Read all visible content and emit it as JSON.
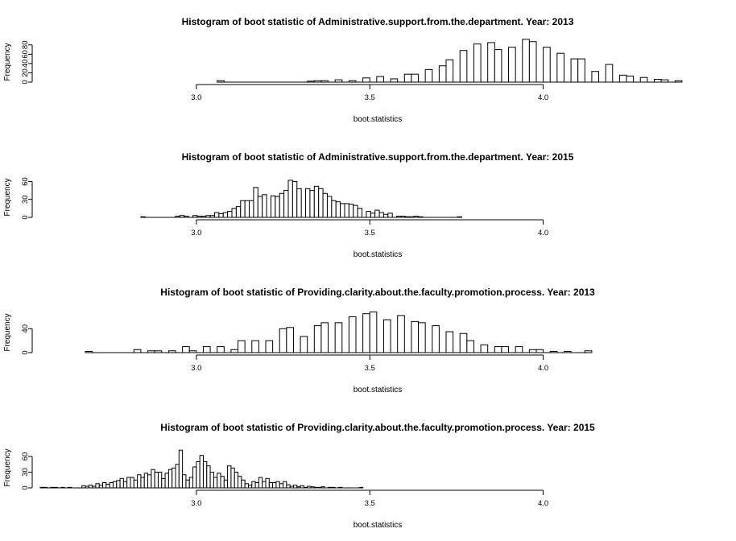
{
  "chart_data": [
    {
      "type": "bar",
      "title": "Histogram of boot statistic of  Administrative.support.from.the.department. Year: 2013",
      "xlabel": "boot.statistics",
      "ylabel": "Frequency",
      "xticks": [
        "3.0",
        "3.5",
        "4.0"
      ],
      "yticks": [
        "0",
        "20",
        "40",
        "60",
        "80"
      ],
      "xlim": [
        2.55,
        4.5
      ],
      "ylim": [
        0,
        90
      ],
      "bin_width": 0.02,
      "x_start": 3.06,
      "values": [
        3,
        0,
        0,
        0,
        0,
        0,
        0,
        0,
        0,
        0,
        0,
        0,
        0,
        2,
        3,
        3,
        0,
        5,
        0,
        3,
        0,
        9,
        0,
        12,
        0,
        7,
        0,
        17,
        17,
        0,
        27,
        0,
        35,
        48,
        0,
        68,
        0,
        82,
        0,
        85,
        70,
        0,
        75,
        0,
        92,
        87,
        0,
        75,
        0,
        62,
        0,
        50,
        50,
        0,
        23,
        0,
        38,
        0,
        15,
        13,
        0,
        10,
        0,
        6,
        5,
        0,
        3,
        0,
        0,
        0,
        0,
        0,
        0
      ],
      "grid": false,
      "legend": "none"
    },
    {
      "type": "bar",
      "title": "Histogram of boot statistic of  Administrative.support.from.the.department. Year: 2015",
      "xlabel": "boot.statistics",
      "ylabel": "Frequency",
      "xticks": [
        "3.0",
        "3.5",
        "4.0"
      ],
      "yticks": [
        "0",
        "30",
        "60"
      ],
      "xlim": [
        2.55,
        4.5
      ],
      "ylim": [
        0,
        70
      ],
      "bin_width": 0.0125,
      "x_start": 2.84,
      "values": [
        1,
        0,
        0,
        0,
        0,
        0,
        0,
        0,
        2,
        3,
        2,
        0,
        3,
        2,
        2,
        3,
        3,
        8,
        6,
        8,
        10,
        15,
        18,
        28,
        28,
        28,
        50,
        35,
        38,
        0,
        36,
        35,
        40,
        45,
        62,
        60,
        48,
        0,
        48,
        45,
        52,
        48,
        40,
        35,
        28,
        26,
        23,
        23,
        22,
        20,
        15,
        0,
        10,
        7,
        12,
        8,
        5,
        7,
        0,
        2,
        2,
        1,
        1,
        2,
        1,
        0,
        0,
        0,
        0,
        0,
        0,
        0,
        0,
        1
      ],
      "grid": false,
      "legend": "none"
    },
    {
      "type": "bar",
      "title": "Histogram of boot statistic of  Providing.clarity.about.the.faculty.promotion.process. Year: 2013",
      "xlabel": "boot.statistics",
      "ylabel": "Frequency",
      "xticks": [
        "3.0",
        "3.5",
        "4.0"
      ],
      "yticks": [
        "0",
        "40"
      ],
      "xlim": [
        2.55,
        4.5
      ],
      "ylim": [
        0,
        70
      ],
      "bin_width": 0.02,
      "x_start": 2.68,
      "values": [
        2,
        0,
        0,
        0,
        0,
        0,
        0,
        5,
        0,
        3,
        3,
        0,
        3,
        0,
        10,
        3,
        0,
        10,
        0,
        10,
        0,
        5,
        20,
        0,
        20,
        0,
        20,
        0,
        40,
        42,
        0,
        27,
        0,
        45,
        50,
        0,
        50,
        0,
        60,
        0,
        65,
        68,
        0,
        55,
        0,
        62,
        0,
        52,
        50,
        0,
        45,
        0,
        35,
        0,
        32,
        20,
        0,
        13,
        0,
        10,
        10,
        0,
        10,
        0,
        5,
        5,
        0,
        2,
        0,
        2,
        0,
        0,
        3
      ],
      "grid": false,
      "legend": "none"
    },
    {
      "type": "bar",
      "title": "Histogram of boot statistic of  Providing.clarity.about.the.faculty.promotion.process. Year: 2015",
      "xlabel": "boot.statistics",
      "ylabel": "Frequency",
      "xticks": [
        "3.0",
        "3.5",
        "4.0"
      ],
      "yticks": [
        "0",
        "30",
        "60"
      ],
      "xlim": [
        2.55,
        4.5
      ],
      "ylim": [
        0,
        80
      ],
      "bin_width": 0.01,
      "x_start": 2.55,
      "values": [
        1,
        1,
        0,
        1,
        1,
        0,
        1,
        0,
        1,
        0,
        0,
        0,
        4,
        3,
        5,
        3,
        8,
        5,
        10,
        7,
        10,
        12,
        14,
        18,
        12,
        20,
        20,
        15,
        25,
        20,
        28,
        25,
        35,
        30,
        30,
        18,
        28,
        35,
        38,
        45,
        72,
        25,
        15,
        20,
        40,
        50,
        62,
        50,
        42,
        30,
        20,
        28,
        22,
        15,
        42,
        38,
        30,
        22,
        15,
        8,
        5,
        12,
        10,
        20,
        12,
        18,
        10,
        10,
        12,
        8,
        12,
        6,
        3,
        5,
        2,
        4,
        1,
        3,
        2,
        1,
        1,
        2,
        0,
        1,
        1,
        0,
        1,
        0,
        0,
        0,
        0,
        0,
        1
      ],
      "grid": false,
      "legend": "none"
    }
  ]
}
